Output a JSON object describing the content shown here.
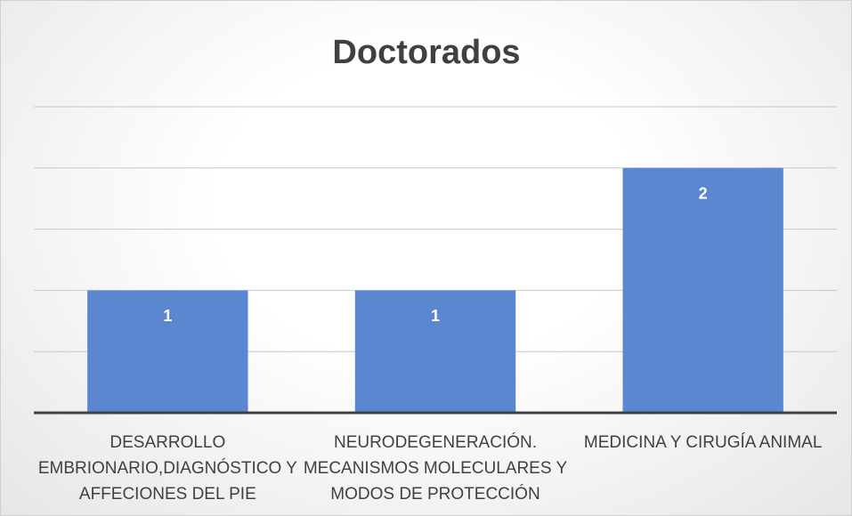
{
  "chart_data": {
    "type": "bar",
    "title": "Doctorados",
    "categories": [
      "DESARROLLO EMBRIONARIO,DIAGNÓSTICO Y AFFECIONES DEL PIE",
      "NEURODEGENERACIÓN. MECANISMOS MOLECULARES Y MODOS DE PROTECCIÓN",
      "MEDICINA Y CIRUGÍA ANIMAL"
    ],
    "values": [
      1,
      1,
      2
    ],
    "color": "#5b87d0",
    "ylim": [
      0,
      2.5
    ],
    "yticks": [
      0,
      0.5,
      1,
      1.5,
      2,
      2.5
    ],
    "grid": true
  }
}
